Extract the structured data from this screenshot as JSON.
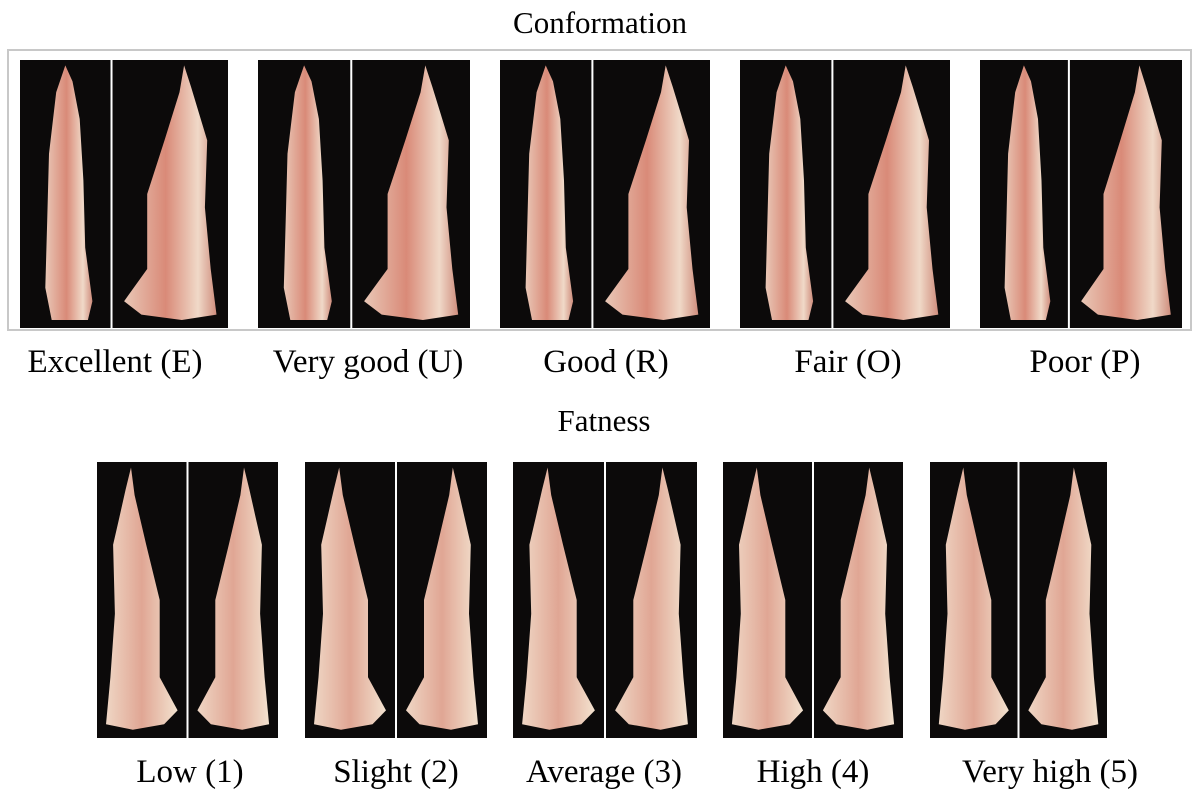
{
  "sections": [
    {
      "title": "Conformation",
      "labels": [
        "Excellent (E)",
        "Very good (U)",
        "Good (R)",
        "Fair (O)",
        "Poor (P)"
      ]
    },
    {
      "title": "Fatness",
      "labels": [
        "Low (1)",
        "Slight (2)",
        "Average (3)",
        "High (4)",
        "Very high (5)"
      ]
    }
  ]
}
